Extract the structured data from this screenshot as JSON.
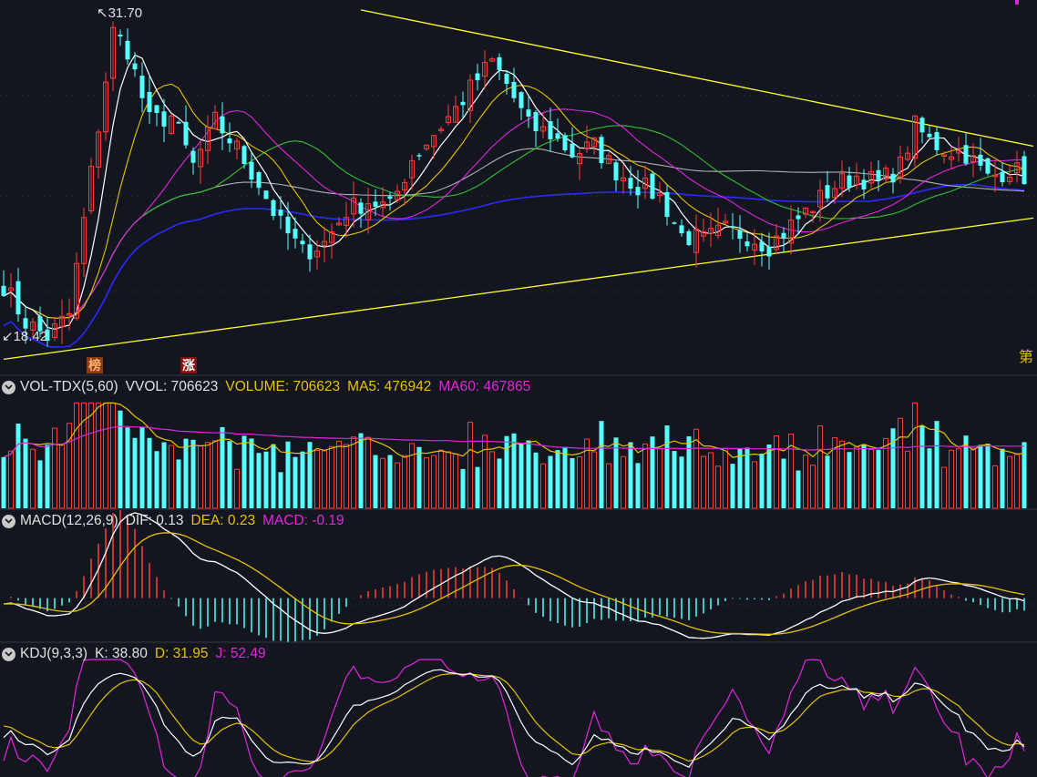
{
  "colors": {
    "bg": "#14161f",
    "up": "#ff3b3b",
    "down": "#54ffff",
    "white": "#ffffff",
    "yellow": "#e6c200",
    "magenta": "#e025e0",
    "green": "#2fc12f",
    "gray": "#b0b0b0",
    "blue": "#2a2aff",
    "trend": "#ffff33",
    "divider": "#2a2d38"
  },
  "price_panel": {
    "high_label": "31.70",
    "low_label": "18.42",
    "right_edge_label": "第",
    "tags": [
      {
        "text": "榜"
      },
      {
        "text": "涨"
      }
    ]
  },
  "vol_header": {
    "name": "VOL-TDX(5,60)",
    "vvol": "VVOL: 706623",
    "volume": "VOLUME: 706623",
    "ma5": "MA5: 476942",
    "ma60": "MA60: 467865"
  },
  "macd_header": {
    "name": "MACD(12,26,9)",
    "dif": "DIF: 0.13",
    "dea": "DEA: 0.23",
    "macd": "MACD: -0.19"
  },
  "kdj_header": {
    "name": "KDJ(9,3,3)",
    "k": "K: 38.80",
    "d": "D: 31.95",
    "j": "J: 52.49"
  },
  "chart_data": {
    "type": "candlestick",
    "y_range": [
      17.5,
      32.5
    ],
    "price_anchors": [
      [
        0,
        21.0
      ],
      [
        3,
        19.5
      ],
      [
        6,
        18.9
      ],
      [
        9,
        19.8
      ],
      [
        12,
        25.5
      ],
      [
        15,
        31.2
      ],
      [
        17,
        30.5
      ],
      [
        20,
        27.6
      ],
      [
        23,
        27.8
      ],
      [
        26,
        25.8
      ],
      [
        29,
        27.6
      ],
      [
        32,
        26.5
      ],
      [
        35,
        25.1
      ],
      [
        38,
        23.4
      ],
      [
        41,
        22.3
      ],
      [
        44,
        22.7
      ],
      [
        47,
        24.0
      ],
      [
        50,
        24.4
      ],
      [
        53,
        24.1
      ],
      [
        56,
        26.1
      ],
      [
        59,
        27.1
      ],
      [
        62,
        28.1
      ],
      [
        65,
        29.3
      ],
      [
        67,
        30.0
      ],
      [
        69,
        29.1
      ],
      [
        72,
        27.4
      ],
      [
        75,
        27.1
      ],
      [
        78,
        26.3
      ],
      [
        81,
        26.6
      ],
      [
        84,
        25.6
      ],
      [
        87,
        25.0
      ],
      [
        90,
        24.6
      ],
      [
        93,
        23.0
      ],
      [
        96,
        22.8
      ],
      [
        99,
        23.2
      ],
      [
        102,
        23.0
      ],
      [
        105,
        22.6
      ],
      [
        108,
        23.4
      ],
      [
        111,
        24.2
      ],
      [
        114,
        25.0
      ],
      [
        117,
        25.4
      ],
      [
        120,
        25.1
      ],
      [
        123,
        25.8
      ],
      [
        125,
        27.4
      ],
      [
        127,
        26.8
      ],
      [
        129,
        26.5
      ],
      [
        132,
        26.3
      ],
      [
        135,
        25.3
      ],
      [
        138,
        25.7
      ],
      [
        140,
        25.4
      ]
    ],
    "n_bars": 141,
    "trendlines": [
      {
        "from": [
          0,
          18.0
        ],
        "to": [
          140,
          23.7
        ]
      },
      {
        "from": [
          49,
          32.1
        ],
        "to": [
          140,
          26.6
        ]
      }
    ],
    "vol_range": [
      0,
      1200000
    ],
    "macd_range": [
      -1.1,
      1.7
    ],
    "kdj_range": [
      0,
      100
    ]
  }
}
